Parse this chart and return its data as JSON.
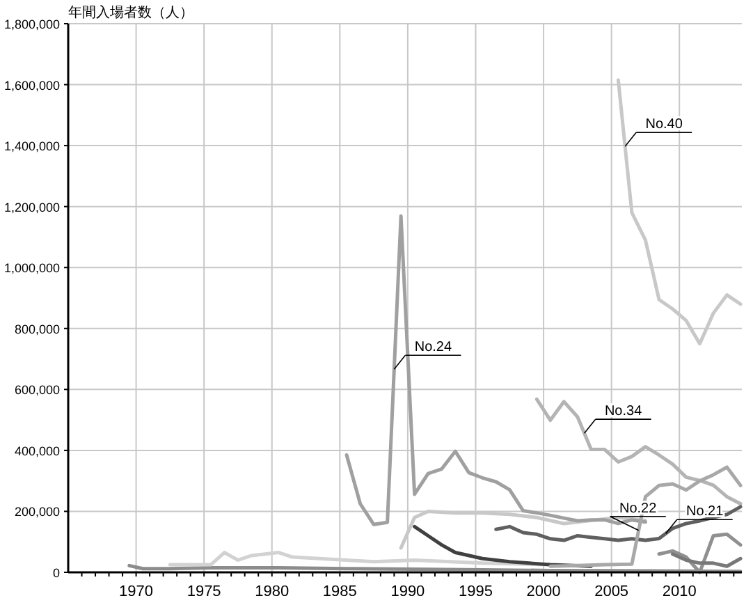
{
  "chart_data": {
    "type": "line",
    "ylabel": "年間入場者数（人）",
    "xlim": [
      1965,
      2014.6
    ],
    "ylim": [
      0,
      1800000
    ],
    "xticks": [
      {
        "value": 1966,
        "label": null
      },
      {
        "value": 1967,
        "label": null
      },
      {
        "value": 1968,
        "label": null
      },
      {
        "value": 1969,
        "label": null
      },
      1970,
      {
        "value": 1971,
        "label": null
      },
      {
        "value": 1972,
        "label": null
      },
      {
        "value": 1973,
        "label": null
      },
      {
        "value": 1974,
        "label": null
      },
      1975,
      {
        "value": 1976,
        "label": null
      },
      {
        "value": 1977,
        "label": null
      },
      {
        "value": 1978,
        "label": null
      },
      {
        "value": 1979,
        "label": null
      },
      1980,
      {
        "value": 1981,
        "label": null
      },
      {
        "value": 1982,
        "label": null
      },
      {
        "value": 1983,
        "label": null
      },
      {
        "value": 1984,
        "label": null
      },
      1985,
      {
        "value": 1986,
        "label": null
      },
      {
        "value": 1987,
        "label": null
      },
      {
        "value": 1988,
        "label": null
      },
      {
        "value": 1989,
        "label": null
      },
      1990,
      {
        "value": 1991,
        "label": null
      },
      {
        "value": 1992,
        "label": null
      },
      {
        "value": 1993,
        "label": null
      },
      {
        "value": 1994,
        "label": null
      },
      1995,
      {
        "value": 1996,
        "label": null
      },
      {
        "value": 1997,
        "label": null
      },
      {
        "value": 1998,
        "label": null
      },
      {
        "value": 1999,
        "label": null
      },
      2000,
      {
        "value": 2001,
        "label": null
      },
      {
        "value": 2002,
        "label": null
      },
      {
        "value": 2003,
        "label": null
      },
      {
        "value": 2004,
        "label": null
      },
      2005,
      {
        "value": 2006,
        "label": null
      },
      {
        "value": 2007,
        "label": null
      },
      {
        "value": 2008,
        "label": null
      },
      {
        "value": 2009,
        "label": null
      },
      2010,
      {
        "value": 2011,
        "label": null
      },
      {
        "value": 2012,
        "label": null
      },
      {
        "value": 2013,
        "label": null
      },
      {
        "value": 2014,
        "label": null
      }
    ],
    "yticks": [
      0,
      {
        "value": 200000,
        "label": "200,000"
      },
      {
        "value": 400000,
        "label": "400,000"
      },
      {
        "value": 600000,
        "label": "600,000"
      },
      {
        "value": 800000,
        "label": "800,000"
      },
      {
        "value": 1000000,
        "label": "1,000,000"
      },
      {
        "value": 1200000,
        "label": "1,200,000"
      },
      {
        "value": 1400000,
        "label": "1,400,000"
      },
      {
        "value": 1600000,
        "label": "1,600,000"
      },
      {
        "value": 1800000,
        "label": "1,800,000"
      }
    ],
    "grid": true,
    "marker": "none",
    "line_style": "solid",
    "series": [
      {
        "color": "#8c8c8c",
        "x": [
          1969.5,
          1970.5,
          1972.5,
          1975.5,
          1980.5,
          1985.5,
          1990.5,
          1995.5,
          2000.5,
          2005.5,
          2010.5,
          2014.5
        ],
        "values": [
          22000,
          12000,
          12000,
          15000,
          15000,
          12000,
          10000,
          8000,
          6000,
          5000,
          4000,
          3000
        ]
      },
      {
        "color": "#d2d2d2",
        "x": [
          1972.5,
          1975.5,
          1976.5,
          1977.5,
          1978.5,
          1979.5,
          1980.5,
          1981.5,
          1983.5,
          1985.5,
          1987.5,
          1990.5,
          1995.5,
          2000.5
        ],
        "values": [
          25000,
          25000,
          65000,
          40000,
          55000,
          60000,
          65000,
          50000,
          45000,
          40000,
          35000,
          40000,
          30000,
          25000
        ]
      },
      {
        "color": "#c8c8c8",
        "x": [
          1989.5,
          1990.5,
          1991.5,
          1993.5,
          1995.5,
          1997.5,
          1999.5,
          2001.5,
          2003.5,
          2005.5,
          2007.5
        ],
        "values": [
          80000,
          180000,
          200000,
          195000,
          195000,
          190000,
          180000,
          160000,
          170000,
          180000,
          170000
        ]
      },
      {
        "color": "#404040",
        "x": [
          1990.5,
          1991.5,
          1992.5,
          1993.5,
          1995.5,
          1997.5,
          2000.5,
          2003.5
        ],
        "values": [
          150000,
          120000,
          90000,
          65000,
          45000,
          35000,
          25000,
          20000
        ]
      },
      {
        "color": "#909090",
        "x": [
          2008.5,
          2009.5,
          2010.5,
          2011.5,
          2012.5,
          2013.5,
          2014.5
        ],
        "values": [
          60000,
          70000,
          50000,
          0,
          120000,
          125000,
          90000
        ]
      },
      {
        "color": "#787878",
        "x": [
          2009.5,
          2010.5,
          2011.5,
          2012.5,
          2013.5,
          2014.5
        ],
        "values": [
          60000,
          40000,
          30000,
          30000,
          20000,
          45000
        ]
      },
      {
        "name": "No.40",
        "color": "#c8c8c8",
        "x": [
          2005.5,
          2006.5,
          2007.5,
          2008.5,
          2009.5,
          2010.5,
          2011.5,
          2012.5,
          2013.5,
          2014.5
        ],
        "values": [
          1615000,
          1180000,
          1090000,
          895000,
          864000,
          826000,
          750000,
          850000,
          910000,
          880000
        ]
      },
      {
        "name": "No.24",
        "color": "#a0a0a0",
        "x": [
          1985.5,
          1986.5,
          1987.5,
          1988.5,
          1989.5,
          1990.5,
          1991.5,
          1992.5,
          1993.5,
          1994.5,
          1995.5,
          1996.5,
          1997.5,
          1998.5,
          1999.5,
          2000.5,
          2001.5,
          2002.5,
          2003.5,
          2004.5,
          2005.5,
          2006.5,
          2007.5
        ],
        "values": [
          385000,
          225000,
          157000,
          164000,
          1169000,
          256000,
          324000,
          339000,
          397000,
          327000,
          310000,
          297000,
          271000,
          202000,
          195000,
          187000,
          178000,
          169000,
          172000,
          172000,
          160000,
          172000,
          165000
        ]
      },
      {
        "name": "No.34",
        "color": "#b4b4b4",
        "x": [
          1999.5,
          2000.5,
          2001.5,
          2002.5,
          2003.5,
          2004.5,
          2005.5,
          2006.5,
          2007.5,
          2008.5,
          2009.5,
          2010.5,
          2011.5,
          2012.5,
          2013.5,
          2014.5
        ],
        "values": [
          568000,
          499000,
          560000,
          510000,
          403000,
          403000,
          362000,
          380000,
          412000,
          385000,
          355000,
          312000,
          301000,
          286000,
          248000,
          225000
        ]
      },
      {
        "name": "No.21",
        "color": "#606060",
        "x": [
          1996.5,
          1997.5,
          1998.5,
          1999.5,
          2000.5,
          2001.5,
          2002.5,
          2003.5,
          2004.5,
          2005.5,
          2006.5,
          2007.5,
          2008.5,
          2009.5,
          2010.5,
          2011.5,
          2012.5,
          2013.5,
          2014.5
        ],
        "values": [
          141000,
          150000,
          130000,
          125000,
          110000,
          105000,
          120000,
          115000,
          110000,
          105000,
          110000,
          105000,
          111000,
          144000,
          160000,
          169000,
          180000,
          190000,
          215000
        ]
      },
      {
        "name": "No.22",
        "color": "#a8a8a8",
        "x": [
          2000.5,
          2002.5,
          2004.5,
          2006.5,
          2007.5,
          2008.5,
          2009.5,
          2010.5,
          2011.5,
          2012.5,
          2013.5,
          2014.5
        ],
        "values": [
          20000,
          22000,
          25000,
          27000,
          248000,
          285000,
          290000,
          270000,
          300000,
          320000,
          345000,
          285000
        ]
      }
    ]
  }
}
